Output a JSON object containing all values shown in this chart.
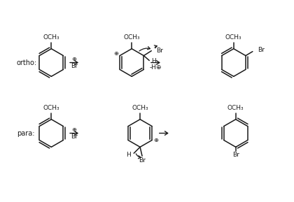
{
  "background": "#ffffff",
  "line_color": "#1a1a1a",
  "text_color": "#1a1a1a",
  "fig_width": 4.2,
  "fig_height": 2.89,
  "dpi": 100,
  "ortho_label": "ortho:",
  "para_label": "para:",
  "circle_plus": "⊕",
  "minus_H_plus": "-H⊕"
}
